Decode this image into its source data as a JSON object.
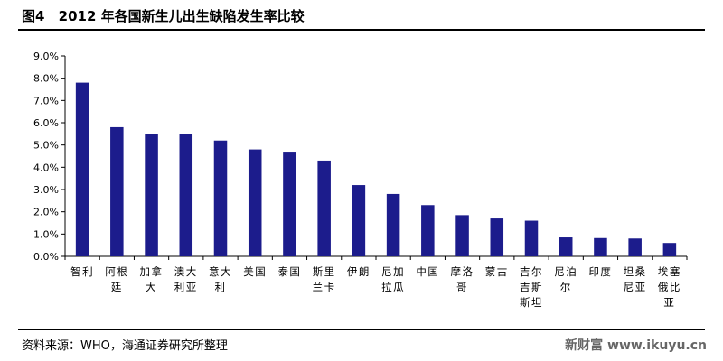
{
  "figure": {
    "label": "图4",
    "title": "2012 年各国新生儿出生缺陷发生率比较",
    "source": "资料来源：WHO，海通证券研究所整理",
    "watermark": "新财富 www.ikuyu.cn"
  },
  "chart_data": {
    "type": "bar",
    "title": "2012 年各国新生儿出生缺陷发生率比较",
    "xlabel": "",
    "ylabel": "",
    "ylim": [
      0,
      9
    ],
    "yticks": [
      "0.0%",
      "1.0%",
      "2.0%",
      "3.0%",
      "4.0%",
      "5.0%",
      "6.0%",
      "7.0%",
      "8.0%",
      "9.0%"
    ],
    "grid": false,
    "legend": "none",
    "bar_color": "#1c1c8c",
    "categories": [
      "智利",
      "阿根廷",
      "加拿大",
      "澳大利亚",
      "意大利",
      "美国",
      "泰国",
      "斯里兰卡",
      "伊朗",
      "尼加拉瓜",
      "中国",
      "摩洛哥",
      "蒙古",
      "吉尔吉斯斯坦",
      "尼泊尔",
      "印度",
      "坦桑尼亚",
      "埃塞俄比亚"
    ],
    "category_lines": [
      [
        "智利"
      ],
      [
        "阿根",
        "廷"
      ],
      [
        "加拿",
        "大"
      ],
      [
        "澳大",
        "利亚"
      ],
      [
        "意大",
        "利"
      ],
      [
        "美国"
      ],
      [
        "泰国"
      ],
      [
        "斯里",
        "兰卡"
      ],
      [
        "伊朗"
      ],
      [
        "尼加",
        "拉瓜"
      ],
      [
        "中国"
      ],
      [
        "摩洛",
        "哥"
      ],
      [
        "蒙古"
      ],
      [
        "吉尔",
        "吉斯",
        "斯坦"
      ],
      [
        "尼泊",
        "尔"
      ],
      [
        "印度"
      ],
      [
        "坦桑",
        "尼亚"
      ],
      [
        "埃塞",
        "俄比",
        "亚"
      ]
    ],
    "values": [
      7.8,
      5.8,
      5.5,
      5.5,
      5.2,
      4.8,
      4.7,
      4.3,
      3.2,
      2.8,
      2.3,
      1.85,
      1.7,
      1.6,
      0.85,
      0.82,
      0.8,
      0.6
    ]
  }
}
